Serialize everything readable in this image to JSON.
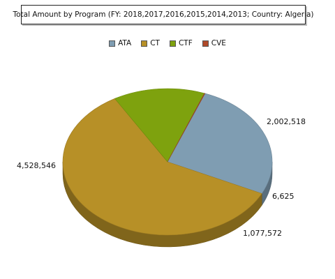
{
  "chart_data": {
    "type": "pie",
    "title": "Total Amount by Program (FY: 2018,2017,2016,2015,2014,2013; Country: Algeria)",
    "legend_position": "top",
    "slices": [
      {
        "label": "ATA",
        "value": 2002518,
        "display": "2,002,518",
        "color": "#7f9db2"
      },
      {
        "label": "CT",
        "value": 4528546,
        "display": "4,528,546",
        "color": "#b79027"
      },
      {
        "label": "CTF",
        "value": 1077572,
        "display": "1,077,572",
        "color": "#7ea20e"
      },
      {
        "label": "CVE",
        "value": 6625,
        "display": "6,625",
        "color": "#b04a2a"
      }
    ]
  }
}
